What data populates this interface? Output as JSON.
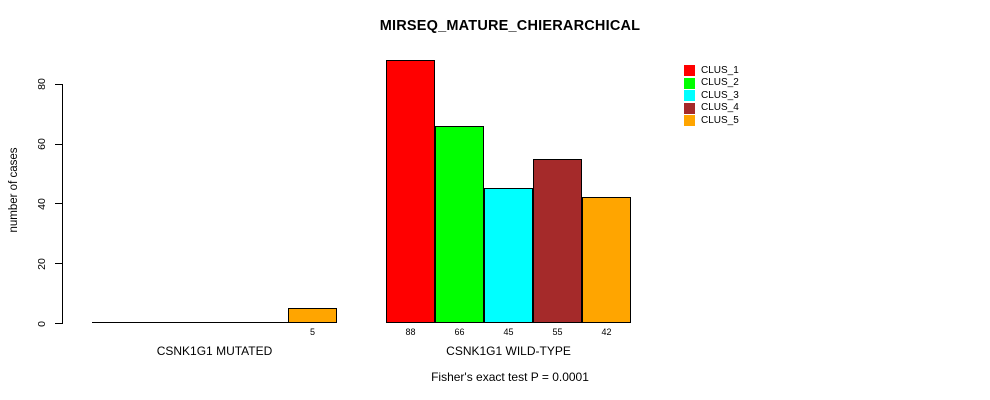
{
  "title": "MIRSEQ_MATURE_CHIERARCHICAL",
  "chart_data": {
    "type": "bar",
    "title": "MIRSEQ_MATURE_CHIERARCHICAL",
    "xlabel": "",
    "ylabel": "number of cases",
    "ylim": [
      0,
      88
    ],
    "yticks": [
      0,
      20,
      40,
      60,
      80
    ],
    "grid": false,
    "legend_position": "topright",
    "series": [
      {
        "name": "CLUS_1",
        "color": "#FF0000"
      },
      {
        "name": "CLUS_2",
        "color": "#00FF00"
      },
      {
        "name": "CLUS_3",
        "color": "#00FFFF"
      },
      {
        "name": "CLUS_4",
        "color": "#A52A2A"
      },
      {
        "name": "CLUS_5",
        "color": "#FFA500"
      }
    ],
    "groups": [
      {
        "label": "CSNK1G1 MUTATED",
        "values": [
          0,
          0,
          0,
          0,
          5
        ],
        "bar_labels": [
          "",
          "",
          "",
          "",
          "5"
        ]
      },
      {
        "label": "CSNK1G1 WILD-TYPE",
        "values": [
          88,
          66,
          45,
          55,
          42
        ],
        "bar_labels": [
          "88",
          "66",
          "45",
          "55",
          "42"
        ]
      }
    ],
    "annotation": "Fisher's exact test P = 0.0001"
  }
}
